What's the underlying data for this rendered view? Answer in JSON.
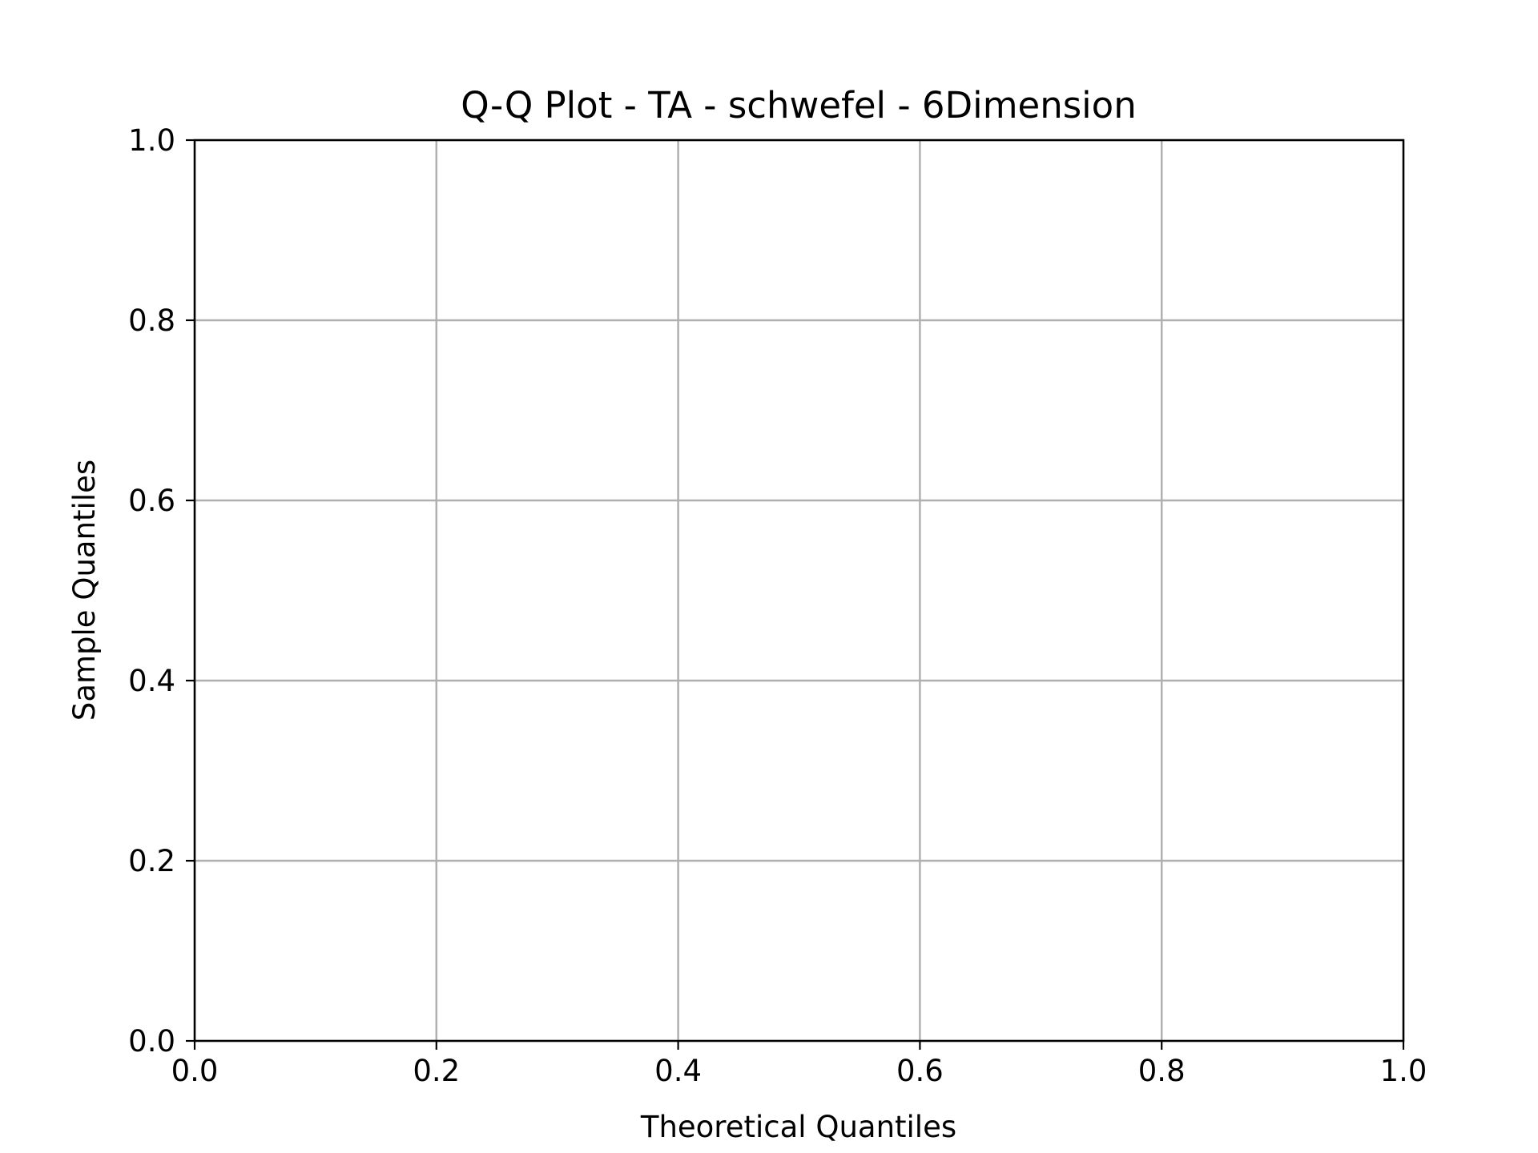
{
  "chart_data": {
    "type": "scatter",
    "title": "Q-Q Plot - TA - schwefel - 6Dimension",
    "xlabel": "Theoretical Quantiles",
    "ylabel": "Sample Quantiles",
    "xlim": [
      0.0,
      1.0
    ],
    "ylim": [
      0.0,
      1.0
    ],
    "xticks": [
      0.0,
      0.2,
      0.4,
      0.6,
      0.8,
      1.0
    ],
    "yticks": [
      0.0,
      0.2,
      0.4,
      0.6,
      0.8,
      1.0
    ],
    "xtick_labels": [
      "0.0",
      "0.2",
      "0.4",
      "0.6",
      "0.8",
      "1.0"
    ],
    "ytick_labels": [
      "0.0",
      "0.2",
      "0.4",
      "0.6",
      "0.8",
      "1.0"
    ],
    "grid": true,
    "series": [],
    "colors": {
      "grid": "#b0b0b0",
      "axis": "#000000",
      "background": "#ffffff"
    }
  }
}
